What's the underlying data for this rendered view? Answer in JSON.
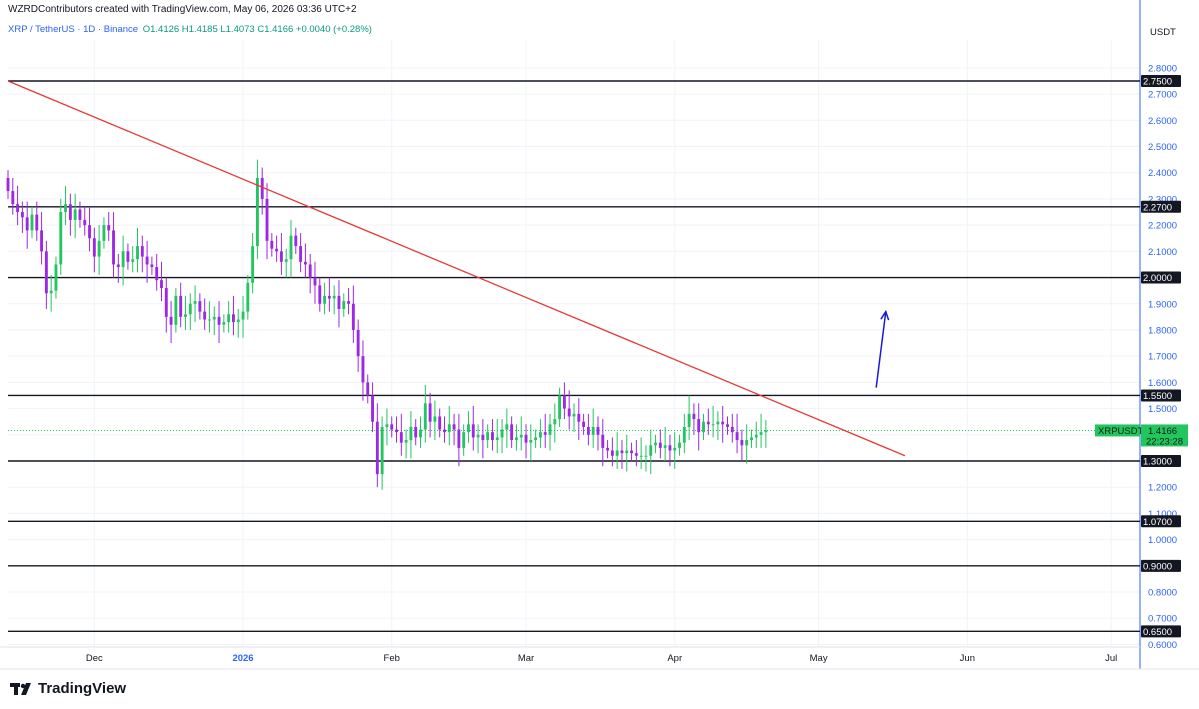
{
  "header": {
    "created_by": "WZRDContributors created with TradingView.com, May 06, 2026 03:36 UTC+2",
    "symbol": "XRP / TetherUS · 1D · Binance",
    "ohlc": "O1.4126 H1.4185 L1.4073 C1.4166 +0.0040 (+0.28%)"
  },
  "footer": {
    "brand": "TradingView",
    "logo_icon": "tradingview-logo-icon"
  },
  "colors": {
    "up": "#22c55e",
    "down": "#9c27e8",
    "trendline": "#e53935",
    "arrow": "#1a1ad6",
    "level": "#131722",
    "axis_text": "#2962ff",
    "current_price": "#22c55e"
  },
  "chart_data": {
    "type": "candlestick",
    "currency_label": "USDT",
    "ylim": [
      0.6,
      2.9
    ],
    "y_ticks": [
      "0.6000",
      "0.7000",
      "0.8000",
      "0.9000",
      "1.0000",
      "1.1000",
      "1.2000",
      "1.3000",
      "1.4000",
      "1.5000",
      "1.6000",
      "1.7000",
      "1.8000",
      "1.9000",
      "2.0000",
      "2.1000",
      "2.2000",
      "2.3000",
      "2.4000",
      "2.5000",
      "2.6000",
      "2.7000",
      "2.8000"
    ],
    "x_ticks": [
      {
        "date": "2025-12-01",
        "label": "Dec"
      },
      {
        "date": "2026-01-01",
        "label": "2026"
      },
      {
        "date": "2026-02-01",
        "label": "Feb"
      },
      {
        "date": "2026-03-01",
        "label": "Mar"
      },
      {
        "date": "2026-04-01",
        "label": "Apr"
      },
      {
        "date": "2026-05-01",
        "label": "May"
      },
      {
        "date": "2026-06-01",
        "label": "Jun"
      },
      {
        "date": "2026-07-01",
        "label": "Jul"
      }
    ],
    "xlim": [
      "2025-11-13",
      "2026-07-07"
    ],
    "horizontal_levels": [
      {
        "value": 2.75,
        "label": "2.7500"
      },
      {
        "value": 2.27,
        "label": "2.2700"
      },
      {
        "value": 2.0,
        "label": "2.0000"
      },
      {
        "value": 1.55,
        "label": "1.5500"
      },
      {
        "value": 1.3,
        "label": "1.3000"
      },
      {
        "value": 1.07,
        "label": "1.0700"
      },
      {
        "value": 0.9,
        "label": "0.9000"
      },
      {
        "value": 0.65,
        "label": "0.6500"
      }
    ],
    "trendline": {
      "start": {
        "date": "2025-11-13",
        "value": 2.75
      },
      "end": {
        "date": "2026-05-19",
        "value": 1.32
      }
    },
    "projection_arrow": {
      "start": {
        "date": "2026-05-13",
        "value": 1.58
      },
      "end": {
        "date": "2026-05-15",
        "value": 1.87
      }
    },
    "current_price": {
      "symbol": "XRPUSDT",
      "value": 1.4166,
      "price_label": "1.4166",
      "countdown": "22:23:28"
    },
    "candles": {
      "start_date": "2025-11-13",
      "open": [
        2.38,
        2.33,
        2.28,
        2.25,
        2.23,
        2.18,
        2.24,
        2.18,
        2.1,
        1.94,
        1.95,
        2.05,
        2.25,
        2.28,
        2.22,
        2.26,
        2.22,
        2.2,
        2.15,
        2.08,
        2.14,
        2.2,
        2.18,
        2.05,
        2.04,
        2.1,
        2.06,
        2.07,
        2.12,
        2.08,
        2.05,
        2.04,
        1.99,
        1.96,
        1.85,
        1.82,
        1.93,
        1.85,
        1.86,
        1.9,
        1.91,
        1.87,
        1.84,
        1.84,
        1.85,
        1.82,
        1.83,
        1.86,
        1.83,
        1.84,
        1.87,
        1.98,
        2.12,
        2.38,
        2.3,
        2.14,
        2.11,
        2.1,
        2.06,
        2.07,
        2.16,
        2.12,
        2.06,
        2.05,
        2.0,
        1.97,
        1.9,
        1.93,
        1.92,
        1.93,
        1.88,
        1.91,
        1.9,
        1.8,
        1.7,
        1.6,
        1.55,
        1.45,
        1.25,
        1.43,
        1.44,
        1.42,
        1.41,
        1.37,
        1.38,
        1.43,
        1.39,
        1.42,
        1.52,
        1.45,
        1.47,
        1.42,
        1.41,
        1.44,
        1.42,
        1.35,
        1.41,
        1.44,
        1.39,
        1.4,
        1.38,
        1.41,
        1.38,
        1.39,
        1.42,
        1.44,
        1.38,
        1.39,
        1.4,
        1.37,
        1.38,
        1.39,
        1.41,
        1.4,
        1.44,
        1.46,
        1.55,
        1.5,
        1.47,
        1.48,
        1.45,
        1.43,
        1.4,
        1.43,
        1.4,
        1.35,
        1.34,
        1.32,
        1.34,
        1.33,
        1.34,
        1.33,
        1.32,
        1.32,
        1.32,
        1.36,
        1.37,
        1.35,
        1.36,
        1.34,
        1.35,
        1.37,
        1.43,
        1.48,
        1.46,
        1.41,
        1.45,
        1.44,
        1.44,
        1.45,
        1.44,
        1.43,
        1.41,
        1.38,
        1.36,
        1.38,
        1.39,
        1.4,
        1.41
      ],
      "close": [
        2.33,
        2.28,
        2.25,
        2.23,
        2.18,
        2.24,
        2.18,
        2.1,
        1.94,
        1.95,
        2.05,
        2.25,
        2.28,
        2.22,
        2.26,
        2.22,
        2.2,
        2.15,
        2.08,
        2.14,
        2.2,
        2.18,
        2.05,
        2.04,
        2.1,
        2.06,
        2.07,
        2.12,
        2.08,
        2.05,
        2.04,
        1.99,
        1.96,
        1.85,
        1.82,
        1.93,
        1.85,
        1.86,
        1.9,
        1.91,
        1.87,
        1.84,
        1.84,
        1.85,
        1.82,
        1.83,
        1.86,
        1.83,
        1.84,
        1.87,
        1.98,
        2.12,
        2.38,
        2.3,
        2.14,
        2.11,
        2.1,
        2.06,
        2.07,
        2.16,
        2.12,
        2.06,
        2.05,
        2.0,
        1.97,
        1.9,
        1.93,
        1.92,
        1.93,
        1.88,
        1.91,
        1.9,
        1.8,
        1.7,
        1.6,
        1.55,
        1.45,
        1.25,
        1.43,
        1.44,
        1.42,
        1.41,
        1.37,
        1.38,
        1.43,
        1.39,
        1.42,
        1.52,
        1.45,
        1.47,
        1.42,
        1.41,
        1.44,
        1.42,
        1.35,
        1.41,
        1.44,
        1.39,
        1.4,
        1.38,
        1.41,
        1.38,
        1.39,
        1.42,
        1.44,
        1.38,
        1.39,
        1.4,
        1.37,
        1.38,
        1.39,
        1.41,
        1.4,
        1.44,
        1.46,
        1.55,
        1.5,
        1.47,
        1.48,
        1.45,
        1.43,
        1.4,
        1.43,
        1.4,
        1.35,
        1.34,
        1.32,
        1.34,
        1.33,
        1.34,
        1.33,
        1.32,
        1.32,
        1.32,
        1.36,
        1.37,
        1.35,
        1.36,
        1.34,
        1.35,
        1.37,
        1.43,
        1.48,
        1.46,
        1.41,
        1.45,
        1.44,
        1.44,
        1.45,
        1.44,
        1.43,
        1.41,
        1.38,
        1.36,
        1.38,
        1.39,
        1.4,
        1.41,
        1.4166
      ]
    }
  }
}
